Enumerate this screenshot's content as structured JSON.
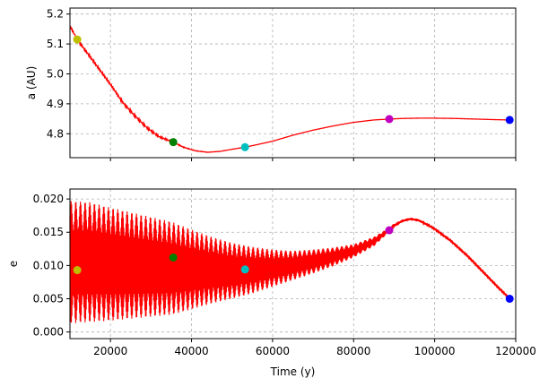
{
  "chart_data": [
    {
      "type": "line",
      "xlabel": "",
      "ylabel": "a (AU)",
      "xlim": [
        10000,
        120000
      ],
      "ylim": [
        4.72,
        5.22
      ],
      "x_ticks": [
        20000,
        40000,
        60000,
        80000,
        100000,
        120000
      ],
      "y_ticks": [
        4.8,
        4.9,
        5.0,
        5.1,
        5.2
      ],
      "y_tick_labels": [
        "4.8",
        "4.9",
        "5.0",
        "5.1",
        "5.2"
      ],
      "grid": true,
      "series": [
        {
          "color": "#ff0000",
          "x": [
            10000,
            11800,
            14000,
            17000,
            20000,
            23000,
            26000,
            29000,
            32000,
            35500,
            38000,
            41000,
            44000,
            47000,
            50000,
            53200,
            56000,
            60000,
            65000,
            70000,
            75000,
            80000,
            85000,
            88800,
            92000,
            96000,
            100000,
            105000,
            110000,
            115000,
            118500
          ],
          "y": [
            5.16,
            5.115,
            5.075,
            5.02,
            4.965,
            4.905,
            4.86,
            4.82,
            4.79,
            4.772,
            4.755,
            4.743,
            4.738,
            4.741,
            4.748,
            4.755,
            4.763,
            4.775,
            4.795,
            4.812,
            4.826,
            4.838,
            4.846,
            4.849,
            4.851,
            4.852,
            4.852,
            4.851,
            4.849,
            4.847,
            4.846
          ],
          "noise_band": [
            [
              10000,
              0.006
            ],
            [
              30000,
              0.004
            ],
            [
              40000,
              0.001
            ],
            [
              50000,
              0.0
            ]
          ]
        }
      ],
      "markers": [
        {
          "x": 11800,
          "y": 5.115,
          "color": "#bfbf00"
        },
        {
          "x": 35500,
          "y": 4.772,
          "color": "#008000"
        },
        {
          "x": 53200,
          "y": 4.755,
          "color": "#00bfbf"
        },
        {
          "x": 88800,
          "y": 4.849,
          "color": "#bf00bf"
        },
        {
          "x": 118500,
          "y": 4.846,
          "color": "#0000ff"
        }
      ]
    },
    {
      "type": "line",
      "xlabel": "Time (y)",
      "ylabel": "e",
      "xlim": [
        10000,
        120000
      ],
      "ylim": [
        -0.001,
        0.0215
      ],
      "x_ticks": [
        20000,
        40000,
        60000,
        80000,
        100000,
        120000
      ],
      "x_tick_labels": [
        "20000",
        "40000",
        "60000",
        "80000",
        "100000",
        "120000"
      ],
      "y_ticks": [
        0.0,
        0.005,
        0.01,
        0.015,
        0.02
      ],
      "y_tick_labels": [
        "0.000",
        "0.005",
        "0.010",
        "0.015",
        "0.020"
      ],
      "grid": true,
      "series": [
        {
          "color": "#ff0000",
          "x": [
            10000,
            15000,
            20000,
            25000,
            30000,
            35000,
            40000,
            45000,
            50000,
            55000,
            60000,
            65000,
            70000,
            75000,
            80000,
            85000,
            88000,
            90000,
            92000,
            94000,
            96000,
            98000,
            100000,
            104000,
            108000,
            112000,
            116000,
            118500
          ],
          "mean": [
            0.0105,
            0.0105,
            0.0102,
            0.01,
            0.0098,
            0.0096,
            0.0094,
            0.0093,
            0.0092,
            0.0093,
            0.0096,
            0.01,
            0.0106,
            0.0113,
            0.0122,
            0.0136,
            0.015,
            0.016,
            0.0167,
            0.017,
            0.0168,
            0.0162,
            0.0155,
            0.0137,
            0.0115,
            0.009,
            0.0065,
            0.005
          ],
          "amp": [
            0.0092,
            0.009,
            0.0085,
            0.008,
            0.0075,
            0.007,
            0.006,
            0.005,
            0.0042,
            0.0035,
            0.0028,
            0.0022,
            0.0018,
            0.0014,
            0.001,
            0.0007,
            0.0004,
            0.0003,
            0.0002,
            0.0002,
            0.0002,
            0.0001,
            0.0001,
            0.0001,
            0.0001,
            0.0001,
            0.0001,
            0.0001
          ]
        }
      ],
      "markers": [
        {
          "x": 11800,
          "y": 0.0093,
          "color": "#bfbf00"
        },
        {
          "x": 35500,
          "y": 0.0112,
          "color": "#008000"
        },
        {
          "x": 53200,
          "y": 0.0094,
          "color": "#00bfbf"
        },
        {
          "x": 88800,
          "y": 0.0153,
          "color": "#bf00bf"
        },
        {
          "x": 118500,
          "y": 0.005,
          "color": "#0000ff"
        }
      ]
    }
  ]
}
